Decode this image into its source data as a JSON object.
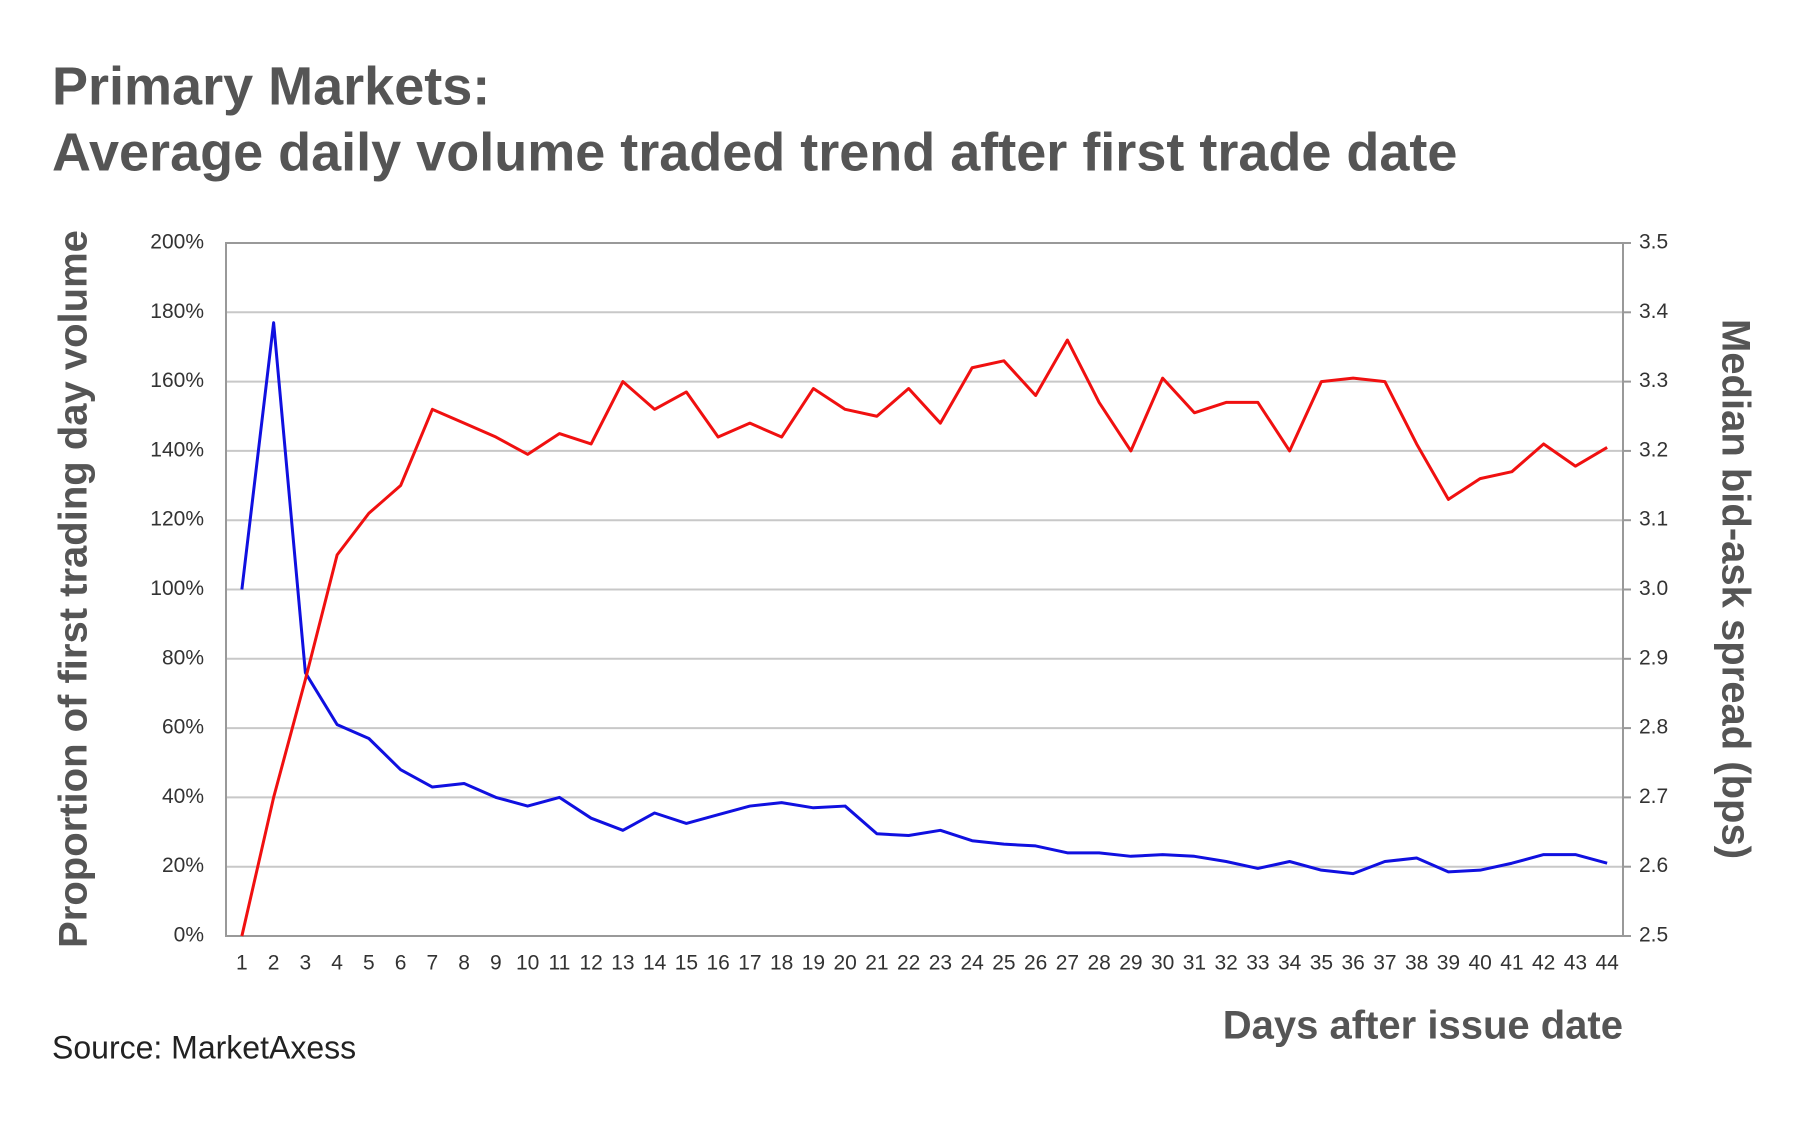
{
  "chart_data": {
    "type": "line",
    "title": "Primary Markets:",
    "subtitle": "Average daily volume traded trend after first trade date",
    "y_label": "Proportion of first trading day volume",
    "y2_label": "Median bid-ask spread (bps)",
    "x_label": "Days after issue date",
    "source": "Source: MarketAxess",
    "categories": [
      "1",
      "2",
      "3",
      "4",
      "5",
      "6",
      "7",
      "8",
      "9",
      "10",
      "11",
      "12",
      "13",
      "14",
      "15",
      "16",
      "17",
      "18",
      "19",
      "20",
      "21",
      "22",
      "23",
      "24",
      "25",
      "26",
      "27",
      "28",
      "29",
      "30",
      "31",
      "32",
      "33",
      "34",
      "35",
      "36",
      "37",
      "38",
      "39",
      "40",
      "41",
      "42",
      "43",
      "44"
    ],
    "series": [
      {
        "color": "#1010e0",
        "axis": "y",
        "values": [
          100,
          177,
          76,
          61,
          57,
          48,
          43,
          44,
          40,
          37.5,
          40,
          34,
          30.5,
          35.5,
          32.5,
          35,
          37.5,
          38.5,
          37,
          37.5,
          29.5,
          29,
          30.5,
          27.5,
          26.5,
          26,
          24,
          24,
          23,
          23.5,
          23,
          21.5,
          19.5,
          21.5,
          19,
          18,
          21.5,
          22.5,
          18.5,
          19,
          21,
          23.5,
          23.5,
          21
        ]
      },
      {
        "color": "#f01010",
        "axis": "y2",
        "values": [
          2.5,
          2.7,
          2.87,
          3.05,
          3.11,
          3.15,
          3.26,
          3.24,
          3.22,
          3.195,
          3.225,
          3.21,
          3.3,
          3.26,
          3.285,
          3.22,
          3.24,
          3.22,
          3.29,
          3.26,
          3.25,
          3.29,
          3.24,
          3.32,
          3.33,
          3.28,
          3.36,
          3.27,
          3.2,
          3.305,
          3.255,
          3.27,
          3.27,
          3.2,
          3.3,
          3.305,
          3.3,
          3.21,
          3.13,
          3.16,
          3.17,
          3.21,
          3.178,
          3.205
        ]
      }
    ],
    "ylim": [
      0,
      200
    ],
    "yticks": [
      {
        "value": 0,
        "label": "0%"
      },
      {
        "value": 20,
        "label": "20%"
      },
      {
        "value": 40,
        "label": "40%"
      },
      {
        "value": 60,
        "label": "60%"
      },
      {
        "value": 80,
        "label": "80%"
      },
      {
        "value": 100,
        "label": "100%"
      },
      {
        "value": 120,
        "label": "120%"
      },
      {
        "value": 140,
        "label": "140%"
      },
      {
        "value": 160,
        "label": "160%"
      },
      {
        "value": 180,
        "label": "180%"
      },
      {
        "value": 200,
        "label": "200%"
      }
    ],
    "y2lim": [
      2.5,
      3.5
    ],
    "y2ticks": [
      2.5,
      2.6,
      2.7,
      2.8,
      2.9,
      {
        "value": 3,
        "label": "3.0"
      },
      3.1,
      3.2,
      3.3,
      3.4,
      3.5
    ],
    "grid": true
  }
}
